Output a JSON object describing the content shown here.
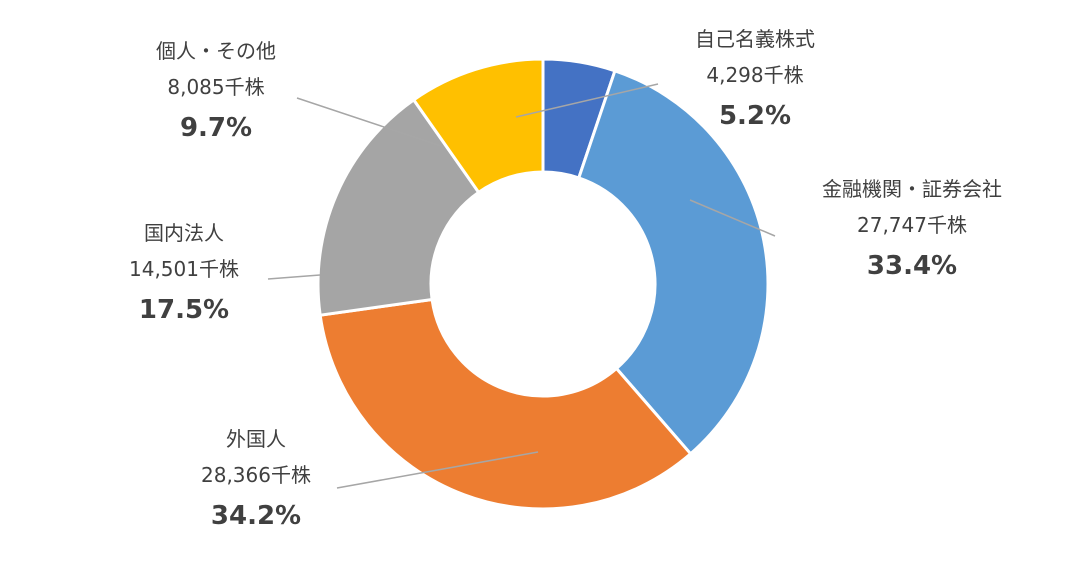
{
  "chart_data": {
    "type": "pie",
    "variant": "donut",
    "title": "",
    "legend": "none",
    "unit": "千株",
    "series": [
      {
        "name": "自己名義株式",
        "value": 4298,
        "amount_label": "4,298千株",
        "pct_label": "5.2%",
        "color": "#4472c4"
      },
      {
        "name": "金融機関・証券会社",
        "value": 27747,
        "amount_label": "27,747千株",
        "pct_label": "33.4%",
        "color": "#5b9bd5"
      },
      {
        "name": "外国人",
        "value": 28366,
        "amount_label": "28,366千株",
        "pct_label": "34.2%",
        "color": "#ed7d31"
      },
      {
        "name": "国内法人",
        "value": 14501,
        "amount_label": "14,501千株",
        "pct_label": "17.5%",
        "color": "#a5a5a5"
      },
      {
        "name": "個人・その他",
        "value": 8085,
        "amount_label": "8,085千株",
        "pct_label": "9.7%",
        "color": "#ffc000"
      }
    ]
  }
}
